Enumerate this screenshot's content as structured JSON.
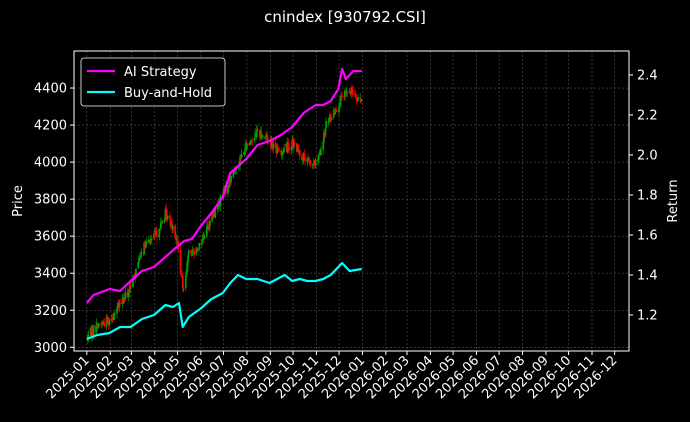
{
  "chart_data": {
    "type": "line",
    "title": "cnindex [930792.CSI]",
    "xlabel": "",
    "ylabel": "Price",
    "y2label": "Return",
    "legend_position": "upper-left",
    "grid": true,
    "x_ticks": [
      "2025-01",
      "2025-02",
      "2025-03",
      "2025-04",
      "2025-05",
      "2025-06",
      "2025-07",
      "2025-08",
      "2025-09",
      "2025-10",
      "2025-11",
      "2025-12",
      "2026-01",
      "2026-02",
      "2026-03",
      "2026-04",
      "2026-05",
      "2026-06",
      "2026-07",
      "2026-08",
      "2026-09",
      "2026-10",
      "2026-11",
      "2026-12"
    ],
    "xlim": [
      "2024-12-15",
      "2026-12-20"
    ],
    "ylim": [
      2980,
      4600
    ],
    "y_ticks": [
      3000,
      3200,
      3400,
      3600,
      3800,
      4000,
      4200,
      4400
    ],
    "y2lim": [
      1.02,
      2.52
    ],
    "y2_ticks": [
      1.2,
      1.4,
      1.6,
      1.8,
      2.0,
      2.2,
      2.4
    ],
    "candle_colors": {
      "up": "#00a000",
      "down": "#ff0000"
    },
    "price_points": [
      [
        "2025-01-02",
        3060
      ],
      [
        "2025-01-15",
        3120
      ],
      [
        "2025-01-31",
        3150
      ],
      [
        "2025-02-14",
        3230
      ],
      [
        "2025-02-28",
        3320
      ],
      [
        "2025-03-14",
        3520
      ],
      [
        "2025-03-31",
        3600
      ],
      [
        "2025-04-08",
        3650
      ],
      [
        "2025-04-15",
        3720
      ],
      [
        "2025-04-25",
        3660
      ],
      [
        "2025-05-01",
        3560
      ],
      [
        "2025-05-08",
        3320
      ],
      [
        "2025-05-16",
        3500
      ],
      [
        "2025-05-30",
        3550
      ],
      [
        "2025-06-13",
        3680
      ],
      [
        "2025-06-30",
        3820
      ],
      [
        "2025-07-15",
        3950
      ],
      [
        "2025-07-31",
        4080
      ],
      [
        "2025-08-15",
        4170
      ],
      [
        "2025-08-31",
        4120
      ],
      [
        "2025-09-12",
        4050
      ],
      [
        "2025-09-30",
        4100
      ],
      [
        "2025-10-10",
        4050
      ],
      [
        "2025-10-20",
        4000
      ],
      [
        "2025-10-31",
        3990
      ],
      [
        "2025-11-07",
        4050
      ],
      [
        "2025-11-14",
        4200
      ],
      [
        "2025-11-28",
        4300
      ],
      [
        "2025-12-10",
        4370
      ],
      [
        "2025-12-20",
        4380
      ],
      [
        "2025-12-31",
        4330
      ]
    ],
    "series": [
      {
        "name": "AI Strategy",
        "color": "#ff00ff",
        "axis": "right",
        "points": [
          [
            "2025-01-01",
            1.26
          ],
          [
            "2025-01-10",
            1.3
          ],
          [
            "2025-01-31",
            1.33
          ],
          [
            "2025-02-14",
            1.32
          ],
          [
            "2025-02-28",
            1.37
          ],
          [
            "2025-03-15",
            1.42
          ],
          [
            "2025-03-31",
            1.44
          ],
          [
            "2025-04-15",
            1.49
          ],
          [
            "2025-04-30",
            1.54
          ],
          [
            "2025-05-10",
            1.57
          ],
          [
            "2025-05-20",
            1.58
          ],
          [
            "2025-05-31",
            1.64
          ],
          [
            "2025-06-15",
            1.71
          ],
          [
            "2025-06-30",
            1.79
          ],
          [
            "2025-07-10",
            1.91
          ],
          [
            "2025-07-31",
            1.98
          ],
          [
            "2025-08-15",
            2.05
          ],
          [
            "2025-08-31",
            2.07
          ],
          [
            "2025-09-15",
            2.1
          ],
          [
            "2025-09-30",
            2.14
          ],
          [
            "2025-10-15",
            2.21
          ],
          [
            "2025-10-31",
            2.25
          ],
          [
            "2025-11-10",
            2.25
          ],
          [
            "2025-11-20",
            2.27
          ],
          [
            "2025-11-30",
            2.33
          ],
          [
            "2025-12-05",
            2.43
          ],
          [
            "2025-12-10",
            2.38
          ],
          [
            "2025-12-20",
            2.42
          ],
          [
            "2025-12-31",
            2.42
          ]
        ]
      },
      {
        "name": "Buy-and-Hold",
        "color": "#00ffff",
        "axis": "right",
        "points": [
          [
            "2025-01-01",
            1.08
          ],
          [
            "2025-01-15",
            1.1
          ],
          [
            "2025-01-31",
            1.11
          ],
          [
            "2025-02-14",
            1.14
          ],
          [
            "2025-02-28",
            1.14
          ],
          [
            "2025-03-15",
            1.18
          ],
          [
            "2025-03-31",
            1.2
          ],
          [
            "2025-04-15",
            1.25
          ],
          [
            "2025-04-25",
            1.24
          ],
          [
            "2025-05-03",
            1.26
          ],
          [
            "2025-05-08",
            1.14
          ],
          [
            "2025-05-16",
            1.19
          ],
          [
            "2025-05-31",
            1.23
          ],
          [
            "2025-06-15",
            1.28
          ],
          [
            "2025-06-30",
            1.31
          ],
          [
            "2025-07-10",
            1.36
          ],
          [
            "2025-07-20",
            1.4
          ],
          [
            "2025-07-31",
            1.38
          ],
          [
            "2025-08-15",
            1.38
          ],
          [
            "2025-08-31",
            1.36
          ],
          [
            "2025-09-10",
            1.38
          ],
          [
            "2025-09-20",
            1.4
          ],
          [
            "2025-09-30",
            1.37
          ],
          [
            "2025-10-10",
            1.38
          ],
          [
            "2025-10-20",
            1.37
          ],
          [
            "2025-10-31",
            1.37
          ],
          [
            "2025-11-10",
            1.38
          ],
          [
            "2025-11-20",
            1.4
          ],
          [
            "2025-11-30",
            1.44
          ],
          [
            "2025-12-05",
            1.46
          ],
          [
            "2025-12-15",
            1.42
          ],
          [
            "2025-12-31",
            1.43
          ]
        ]
      }
    ]
  }
}
